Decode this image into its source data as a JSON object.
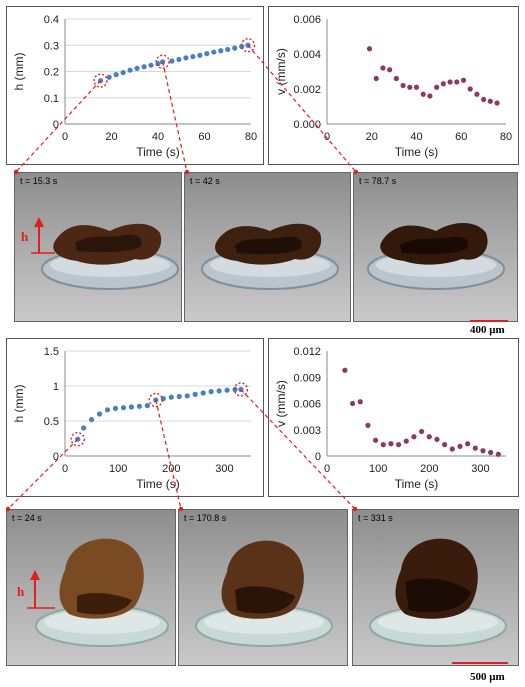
{
  "top": {
    "images": [
      {
        "time_label": "t = 15.3 s"
      },
      {
        "time_label": "t = 42 s"
      },
      {
        "time_label": "t = 78.7 s"
      }
    ],
    "h_marker": "h",
    "scale_label": "400 μm"
  },
  "bottom": {
    "images": [
      {
        "time_label": "t = 24 s"
      },
      {
        "time_label": "t = 170.8 s"
      },
      {
        "time_label": "t = 331 s"
      }
    ],
    "h_marker": "h",
    "scale_label": "500 μm"
  },
  "colors": {
    "h_series": "#4a7fc1",
    "v_series": "#8b3a62",
    "highlight": "#e02020"
  },
  "chart_data": [
    {
      "id": "top-h",
      "type": "scatter",
      "xlabel": "Time (s)",
      "ylabel": "h (mm)",
      "xlim": [
        0,
        80
      ],
      "ylim": [
        0,
        0.4
      ],
      "xticks": [
        "0",
        "20",
        "40",
        "60",
        "80"
      ],
      "yticks": [
        "0",
        "0.1",
        "0.2",
        "0.3",
        "0.4"
      ],
      "grid": true,
      "x": [
        15.3,
        19,
        22,
        25,
        28,
        31,
        34,
        37,
        40,
        42,
        46,
        49,
        52,
        55,
        58,
        61,
        64,
        67,
        70,
        73,
        76,
        78.7
      ],
      "y": [
        0.165,
        0.178,
        0.188,
        0.196,
        0.205,
        0.212,
        0.218,
        0.224,
        0.23,
        0.237,
        0.24,
        0.246,
        0.252,
        0.257,
        0.262,
        0.268,
        0.274,
        0.279,
        0.284,
        0.289,
        0.295,
        0.3
      ],
      "highlight": [
        0,
        9,
        21
      ]
    },
    {
      "id": "top-v",
      "type": "scatter",
      "xlabel": "Time (s)",
      "ylabel": "v (mm/s)",
      "xlim": [
        0,
        80
      ],
      "ylim": [
        0,
        0.006
      ],
      "xticks": [
        "0",
        "20",
        "40",
        "60",
        "80"
      ],
      "yticks": [
        "0.000",
        "0.002",
        "0.004",
        "0.006"
      ],
      "grid": false,
      "x": [
        19,
        22,
        25,
        28,
        31,
        34,
        37,
        40,
        43,
        46,
        49,
        52,
        55,
        58,
        61,
        64,
        67,
        70,
        73,
        76
      ],
      "y": [
        0.0043,
        0.0026,
        0.0032,
        0.0031,
        0.0026,
        0.0022,
        0.0021,
        0.0021,
        0.0017,
        0.0016,
        0.0021,
        0.0023,
        0.0024,
        0.0024,
        0.0025,
        0.002,
        0.0017,
        0.0014,
        0.0013,
        0.0012
      ]
    },
    {
      "id": "bottom-h",
      "type": "scatter",
      "xlabel": "Time (s)",
      "ylabel": "h (mm)",
      "xlim": [
        0,
        350
      ],
      "ylim": [
        0,
        1.5
      ],
      "xticks": [
        "0",
        "100",
        "200",
        "300"
      ],
      "yticks": [
        "0",
        "0.5",
        "1",
        "1.5"
      ],
      "grid": true,
      "x": [
        24,
        35,
        50,
        65,
        80,
        95,
        110,
        125,
        140,
        155,
        170.8,
        185,
        200,
        215,
        230,
        245,
        260,
        275,
        290,
        305,
        320,
        331
      ],
      "y": [
        0.24,
        0.4,
        0.52,
        0.6,
        0.66,
        0.68,
        0.69,
        0.7,
        0.71,
        0.72,
        0.8,
        0.82,
        0.84,
        0.85,
        0.86,
        0.88,
        0.9,
        0.92,
        0.93,
        0.94,
        0.95,
        0.95
      ],
      "highlight": [
        0,
        10,
        21
      ]
    },
    {
      "id": "bottom-v",
      "type": "scatter",
      "xlabel": "Time (s)",
      "ylabel": "v (mm/s)",
      "xlim": [
        0,
        350
      ],
      "ylim": [
        0,
        0.012
      ],
      "xticks": [
        "0",
        "100",
        "200",
        "300"
      ],
      "yticks": [
        "0",
        "0.003",
        "0.006",
        "0.009",
        "0.012"
      ],
      "grid": false,
      "x": [
        35,
        50,
        65,
        80,
        95,
        110,
        125,
        140,
        155,
        170,
        185,
        200,
        215,
        230,
        245,
        260,
        275,
        290,
        305,
        320,
        335
      ],
      "y": [
        0.0098,
        0.006,
        0.0062,
        0.0035,
        0.0018,
        0.0013,
        0.0014,
        0.0013,
        0.0017,
        0.0022,
        0.0028,
        0.0022,
        0.0019,
        0.0013,
        0.0008,
        0.0011,
        0.0014,
        0.0009,
        0.0006,
        0.0004,
        0.0002
      ]
    }
  ]
}
